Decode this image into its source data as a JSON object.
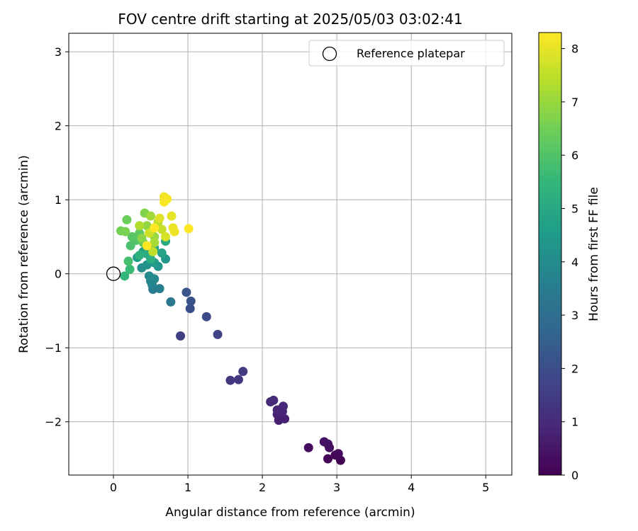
{
  "chart_data": {
    "type": "scatter",
    "title": "FOV centre drift starting at 2025/05/03 03:02:41",
    "xlabel": "Angular distance from reference (arcmin)",
    "ylabel": "Rotation from reference (arcmin)",
    "xlim": [
      -0.6,
      5.35
    ],
    "ylim": [
      -2.72,
      3.25
    ],
    "xticks": [
      0,
      1,
      2,
      3,
      4,
      5
    ],
    "xtick_labels": [
      "0",
      "1",
      "2",
      "3",
      "4",
      "5"
    ],
    "yticks": [
      -2,
      -1,
      0,
      1,
      2,
      3
    ],
    "ytick_labels": [
      "−2",
      "−1",
      "0",
      "1",
      "2",
      "3"
    ],
    "grid": true,
    "legend": {
      "position": "top-right",
      "entries": [
        "Reference platepar"
      ]
    },
    "reference_point": {
      "x": 0,
      "y": 0
    },
    "colorbar": {
      "label": "Hours from first FF file",
      "colormap": "viridis",
      "range": [
        0,
        8.3
      ],
      "ticks": [
        0,
        1,
        2,
        3,
        4,
        5,
        6,
        7,
        8
      ],
      "tick_labels": [
        "0",
        "1",
        "2",
        "3",
        "4",
        "5",
        "6",
        "7",
        "8"
      ]
    },
    "colormap_stops": [
      "#440154",
      "#482878",
      "#3e4989",
      "#31688e",
      "#26828e",
      "#1f9e89",
      "#35b779",
      "#6ece58",
      "#b5de2b",
      "#fde725"
    ],
    "points": [
      {
        "x": 3.05,
        "y": -2.52,
        "h": 0.02
      },
      {
        "x": 2.88,
        "y": -2.5,
        "h": 0.1
      },
      {
        "x": 2.98,
        "y": -2.45,
        "h": 0.15
      },
      {
        "x": 3.02,
        "y": -2.43,
        "h": 0.2
      },
      {
        "x": 2.62,
        "y": -2.35,
        "h": 0.25
      },
      {
        "x": 2.9,
        "y": -2.35,
        "h": 0.3
      },
      {
        "x": 2.88,
        "y": -2.3,
        "h": 0.35
      },
      {
        "x": 2.83,
        "y": -2.27,
        "h": 0.4
      },
      {
        "x": 2.22,
        "y": -1.98,
        "h": 0.7
      },
      {
        "x": 2.3,
        "y": -1.96,
        "h": 0.75
      },
      {
        "x": 2.2,
        "y": -1.9,
        "h": 0.8
      },
      {
        "x": 2.27,
        "y": -1.86,
        "h": 0.85
      },
      {
        "x": 2.2,
        "y": -1.84,
        "h": 0.9
      },
      {
        "x": 2.28,
        "y": -1.79,
        "h": 0.95
      },
      {
        "x": 2.11,
        "y": -1.73,
        "h": 1.0
      },
      {
        "x": 2.15,
        "y": -1.71,
        "h": 1.05
      },
      {
        "x": 1.57,
        "y": -1.44,
        "h": 1.3
      },
      {
        "x": 1.68,
        "y": -1.43,
        "h": 1.35
      },
      {
        "x": 1.74,
        "y": -1.32,
        "h": 1.45
      },
      {
        "x": 0.9,
        "y": -0.84,
        "h": 1.6
      },
      {
        "x": 1.4,
        "y": -0.82,
        "h": 1.7
      },
      {
        "x": 1.25,
        "y": -0.58,
        "h": 1.85
      },
      {
        "x": 1.03,
        "y": -0.47,
        "h": 2.0
      },
      {
        "x": 1.04,
        "y": -0.37,
        "h": 2.1
      },
      {
        "x": 0.98,
        "y": -0.25,
        "h": 2.2
      },
      {
        "x": 0.77,
        "y": -0.38,
        "h": 3.3
      },
      {
        "x": 0.53,
        "y": -0.21,
        "h": 3.5
      },
      {
        "x": 0.62,
        "y": -0.2,
        "h": 3.6
      },
      {
        "x": 0.52,
        "y": -0.15,
        "h": 3.7
      },
      {
        "x": 0.5,
        "y": -0.1,
        "h": 3.8
      },
      {
        "x": 0.55,
        "y": -0.07,
        "h": 3.9
      },
      {
        "x": 0.48,
        "y": -0.03,
        "h": 4.0
      },
      {
        "x": 0.38,
        "y": 0.08,
        "h": 4.1
      },
      {
        "x": 0.45,
        "y": 0.12,
        "h": 4.2
      },
      {
        "x": 0.6,
        "y": 0.1,
        "h": 4.3
      },
      {
        "x": 0.7,
        "y": 0.2,
        "h": 4.4
      },
      {
        "x": 0.55,
        "y": 0.15,
        "h": 4.5
      },
      {
        "x": 0.32,
        "y": 0.22,
        "h": 4.6
      },
      {
        "x": 0.4,
        "y": 0.3,
        "h": 4.7
      },
      {
        "x": 0.65,
        "y": 0.28,
        "h": 4.8
      },
      {
        "x": 0.55,
        "y": 0.35,
        "h": 4.9
      },
      {
        "x": 0.7,
        "y": 0.44,
        "h": 5.0
      },
      {
        "x": 0.45,
        "y": 0.27,
        "h": 5.1
      },
      {
        "x": 0.5,
        "y": 0.2,
        "h": 5.2
      },
      {
        "x": 0.35,
        "y": 0.25,
        "h": 5.3
      },
      {
        "x": 0.15,
        "y": -0.03,
        "h": 5.5
      },
      {
        "x": 0.22,
        "y": 0.06,
        "h": 5.6
      },
      {
        "x": 0.2,
        "y": 0.17,
        "h": 5.8
      },
      {
        "x": 0.23,
        "y": 0.38,
        "h": 5.9
      },
      {
        "x": 0.3,
        "y": 0.45,
        "h": 6.0
      },
      {
        "x": 0.25,
        "y": 0.5,
        "h": 6.1
      },
      {
        "x": 0.35,
        "y": 0.55,
        "h": 6.2
      },
      {
        "x": 0.4,
        "y": 0.42,
        "h": 6.3
      },
      {
        "x": 0.18,
        "y": 0.73,
        "h": 6.4
      },
      {
        "x": 0.1,
        "y": 0.58,
        "h": 6.5
      },
      {
        "x": 0.16,
        "y": 0.57,
        "h": 6.6
      },
      {
        "x": 0.42,
        "y": 0.82,
        "h": 6.7
      },
      {
        "x": 0.38,
        "y": 0.48,
        "h": 6.8
      },
      {
        "x": 0.45,
        "y": 0.65,
        "h": 6.9
      },
      {
        "x": 0.55,
        "y": 0.5,
        "h": 7.0
      },
      {
        "x": 0.5,
        "y": 0.78,
        "h": 7.1
      },
      {
        "x": 0.55,
        "y": 0.42,
        "h": 7.2
      },
      {
        "x": 0.35,
        "y": 0.65,
        "h": 7.3
      },
      {
        "x": 0.6,
        "y": 0.7,
        "h": 7.4
      },
      {
        "x": 0.53,
        "y": 0.3,
        "h": 7.5
      },
      {
        "x": 0.65,
        "y": 0.6,
        "h": 7.6
      },
      {
        "x": 0.48,
        "y": 0.55,
        "h": 7.7
      },
      {
        "x": 0.7,
        "y": 0.5,
        "h": 7.8
      },
      {
        "x": 0.62,
        "y": 0.75,
        "h": 7.9
      },
      {
        "x": 0.78,
        "y": 0.78,
        "h": 8.0
      },
      {
        "x": 0.8,
        "y": 0.62,
        "h": 8.05
      },
      {
        "x": 0.82,
        "y": 0.57,
        "h": 8.1
      },
      {
        "x": 0.68,
        "y": 1.04,
        "h": 8.15
      },
      {
        "x": 0.72,
        "y": 1.01,
        "h": 8.2
      },
      {
        "x": 0.68,
        "y": 0.97,
        "h": 8.25
      },
      {
        "x": 1.01,
        "y": 0.61,
        "h": 8.3
      },
      {
        "x": 0.55,
        "y": 0.62,
        "h": 8.3
      },
      {
        "x": 0.45,
        "y": 0.38,
        "h": 8.3
      }
    ]
  }
}
